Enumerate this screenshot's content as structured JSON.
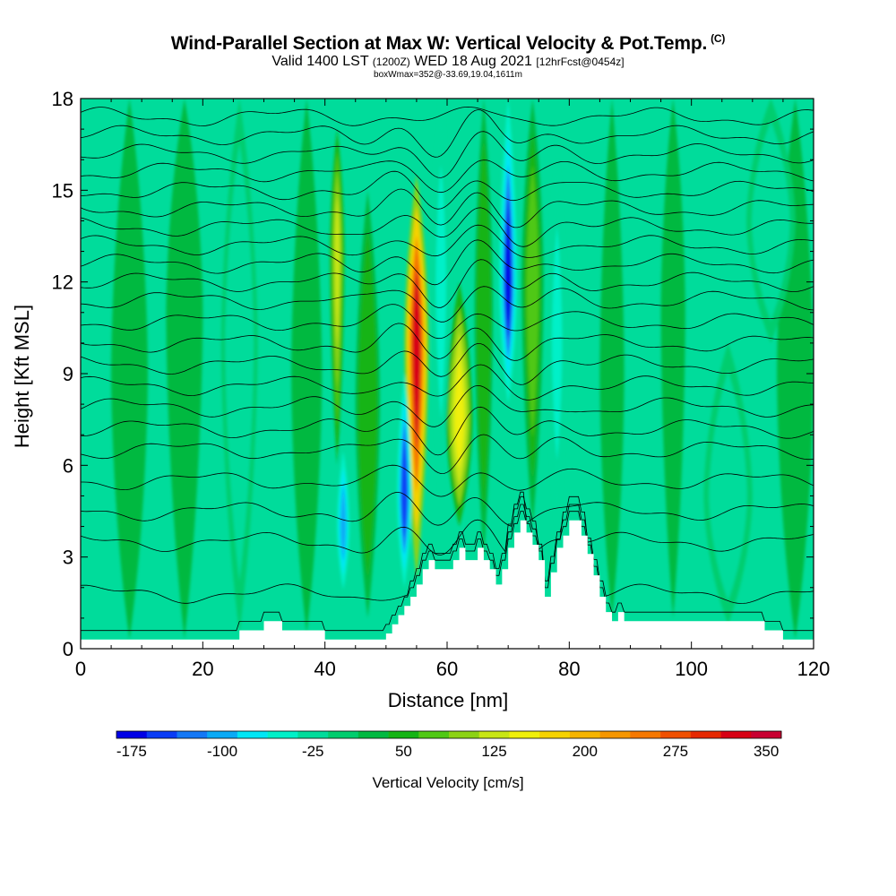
{
  "header": {
    "title": "Wind-Parallel Section at Max W: Vertical Velocity & Pot.Temp.",
    "copyright": "(C)",
    "subtitle_a": "Valid 1400 LST",
    "subtitle_b": "(1200Z)",
    "subtitle_c": "WED 18 Aug 2021",
    "subtitle_d": "[12hrFcst@0454z]",
    "info": "boxWmax=352@-33.69,19.04,1611m"
  },
  "chart_data": {
    "type": "heatmap",
    "xlabel": "Distance [nm]",
    "ylabel": "Height [Kft MSL]",
    "xlim": [
      0,
      120
    ],
    "ylim": [
      0,
      18
    ],
    "x_ticks": [
      "0",
      "20",
      "40",
      "60",
      "80",
      "100",
      "120"
    ],
    "y_ticks": [
      "0",
      "3",
      "6",
      "9",
      "12",
      "15",
      "18"
    ],
    "colorbar": {
      "label": "Vertical Velocity [cm/s]",
      "tick_labels": [
        "-175",
        "-100",
        "-25",
        "50",
        "125",
        "200",
        "275",
        "350"
      ],
      "colors": [
        "#0000e6",
        "#0a3cf5",
        "#1478f5",
        "#0aaaf5",
        "#00e6f5",
        "#00f0c8",
        "#00dc9b",
        "#00cd6e",
        "#00b941",
        "#14b414",
        "#50c814",
        "#8cd214",
        "#c8e614",
        "#f0f00a",
        "#f5d200",
        "#f5b400",
        "#f59600",
        "#f57800",
        "#f05000",
        "#e62800",
        "#d70014",
        "#c80032"
      ]
    },
    "terrain_x": [
      0,
      25,
      26,
      28,
      30,
      31,
      33,
      36,
      40,
      45,
      48,
      50,
      51,
      52,
      53,
      54,
      55,
      56,
      57,
      58,
      59,
      60,
      61,
      62,
      63,
      64,
      65,
      66,
      67,
      68,
      69,
      70,
      71,
      72,
      73,
      74,
      75,
      76,
      77,
      78,
      79,
      80,
      81,
      82,
      83,
      84,
      85,
      86,
      87,
      88,
      89,
      90,
      91,
      92,
      95,
      100,
      105,
      110,
      112,
      115,
      118,
      120
    ],
    "terrain_kft": [
      0.3,
      0.3,
      0.6,
      0.6,
      0.9,
      0.9,
      0.6,
      0.6,
      0.3,
      0.3,
      0.3,
      0.5,
      0.8,
      1.1,
      1.4,
      1.7,
      2.1,
      2.6,
      2.9,
      2.6,
      2.6,
      2.6,
      2.9,
      3.3,
      2.9,
      2.9,
      3.3,
      2.9,
      2.6,
      2.1,
      2.6,
      3.3,
      3.8,
      4.2,
      3.8,
      3.4,
      2.9,
      1.7,
      2.5,
      3.3,
      3.7,
      4.2,
      4.2,
      3.7,
      3.1,
      2.4,
      1.7,
      1.2,
      0.9,
      1.2,
      0.9,
      0.9,
      0.9,
      0.9,
      0.9,
      0.9,
      0.9,
      0.9,
      0.6,
      0.3,
      0.3,
      0.3
    ],
    "features": [
      {
        "x": 55,
        "width": 2.0,
        "bottom_kft": 2.3,
        "top_kft": 15.5,
        "peak_kft": 10,
        "value": 352
      },
      {
        "x": 53,
        "width": 1.2,
        "bottom_kft": 2.0,
        "top_kft": 9,
        "peak_kft": 5,
        "value": -160
      },
      {
        "x": 70,
        "width": 1.5,
        "bottom_kft": 8,
        "top_kft": 18,
        "peak_kft": 12,
        "value": -175
      },
      {
        "x": 62,
        "width": 2.2,
        "bottom_kft": 4,
        "top_kft": 12,
        "peak_kft": 7.5,
        "value": 175
      },
      {
        "x": 42,
        "width": 1.2,
        "bottom_kft": 6,
        "top_kft": 17,
        "peak_kft": 13,
        "value": 150
      },
      {
        "x": 43,
        "width": 1.3,
        "bottom_kft": 1.5,
        "top_kft": 7,
        "peak_kft": 4,
        "value": -100
      },
      {
        "x": 47,
        "width": 2.0,
        "bottom_kft": 1.0,
        "top_kft": 15,
        "peak_kft": 8,
        "value": 70
      },
      {
        "x": 59,
        "width": 1.5,
        "bottom_kft": 5,
        "top_kft": 18,
        "peak_kft": 12,
        "value": -60
      },
      {
        "x": 66,
        "width": 1.5,
        "bottom_kft": 3,
        "top_kft": 18,
        "peak_kft": 11,
        "value": 70
      },
      {
        "x": 74,
        "width": 1.8,
        "bottom_kft": 4,
        "top_kft": 18,
        "peak_kft": 12,
        "value": 90
      },
      {
        "x": 78,
        "width": 1.5,
        "bottom_kft": 4,
        "top_kft": 16,
        "peak_kft": 10,
        "value": -60
      },
      {
        "x": 87,
        "width": 2.0,
        "bottom_kft": 1,
        "top_kft": 18,
        "peak_kft": 9,
        "value": 40
      },
      {
        "x": 37,
        "width": 2.5,
        "bottom_kft": 0.5,
        "top_kft": 18,
        "peak_kft": 9,
        "value": 30
      },
      {
        "x": 26,
        "width": 3.0,
        "bottom_kft": 0.5,
        "top_kft": 18,
        "peak_kft": 10,
        "value": -30
      },
      {
        "x": 106,
        "width": 4.0,
        "bottom_kft": 0.8,
        "top_kft": 10,
        "peak_kft": 5,
        "value": -35
      },
      {
        "x": 97,
        "width": 2.0,
        "bottom_kft": 1,
        "top_kft": 18,
        "peak_kft": 11,
        "value": 35
      },
      {
        "x": 8,
        "width": 3.0,
        "bottom_kft": 0.3,
        "top_kft": 18,
        "peak_kft": 9,
        "value": 25
      },
      {
        "x": 17,
        "width": 3.0,
        "bottom_kft": 0.3,
        "top_kft": 18,
        "peak_kft": 11,
        "value": 20
      },
      {
        "x": 117,
        "width": 3.0,
        "bottom_kft": 0.3,
        "top_kft": 18,
        "peak_kft": 9,
        "value": 30
      },
      {
        "x": 113,
        "width": 4.0,
        "bottom_kft": 10,
        "top_kft": 18,
        "peak_kft": 14,
        "value": -30
      }
    ],
    "isentrope_levels_kft": [
      0.3,
      1.8,
      3.5,
      4.5,
      5.5,
      6.5,
      7.2,
      7.9,
      8.6,
      9.3,
      10.0,
      10.7,
      11.4,
      12.0,
      12.6,
      13.2,
      13.8,
      14.4,
      15.0,
      15.6,
      16.2,
      16.8,
      17.4
    ]
  },
  "colors": {
    "terrain": "#ffffff",
    "contour": "#000000",
    "background": "#ffffff"
  }
}
